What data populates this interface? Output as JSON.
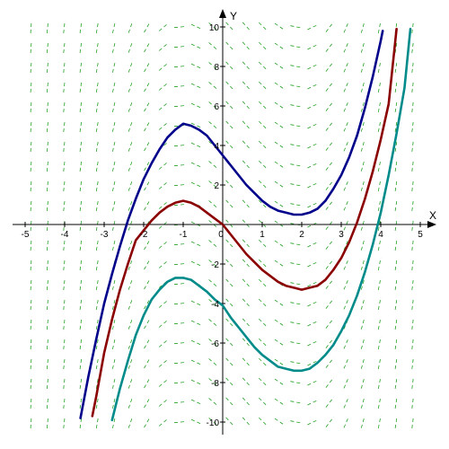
{
  "chart_data": {
    "type": "line",
    "title": "",
    "xlabel": "X",
    "ylabel": "Y",
    "xlim": [
      -5.4,
      5.4
    ],
    "ylim": [
      -10.9,
      10.9
    ],
    "x_ticks": [
      -5,
      -4,
      -3,
      -2,
      -1,
      0,
      1,
      2,
      3,
      4,
      5
    ],
    "y_ticks": [
      -10,
      -8,
      -6,
      -4,
      -2,
      2,
      4,
      6,
      8,
      10
    ],
    "x_tick_labels": [
      "-5",
      "-4",
      "-3",
      "-2",
      "-1",
      "0",
      "1",
      "2",
      "3",
      "4",
      "5"
    ],
    "y_tick_labels": [
      "-10",
      "-8",
      "-6",
      "-4",
      "-2",
      "2",
      "4",
      "6",
      "8",
      "10"
    ],
    "grid": false,
    "slope_field": {
      "dy_dx": "x^2 - x - 2",
      "x_range": [
        -4.9,
        4.7
      ],
      "y_range": [
        -10,
        10
      ],
      "color": "#22a022"
    },
    "series": [
      {
        "color": "#00008b",
        "x": [
          -3.6,
          -3.4,
          -3.2,
          -3.0,
          -2.8,
          -2.6,
          -2.4,
          -2.2,
          -2.0,
          -1.8,
          -1.6,
          -1.4,
          -1.2,
          -1.0,
          -0.8,
          -0.6,
          -0.4,
          -0.2,
          0.0,
          0.2,
          0.4,
          0.6,
          0.8,
          1.0,
          1.2,
          1.4,
          1.6,
          1.8,
          2.0,
          2.2,
          2.4,
          2.6,
          2.8,
          3.0,
          3.2,
          3.4,
          3.6,
          3.8,
          4.0,
          4.05
        ],
        "y": [
          -9.8,
          -7.7,
          -5.8,
          -4.0,
          -2.5,
          -1.1,
          0.2,
          1.3,
          2.3,
          3.1,
          3.8,
          4.4,
          4.8,
          5.1,
          5.0,
          4.8,
          4.5,
          4.0,
          3.5,
          3.0,
          2.5,
          2.0,
          1.6,
          1.2,
          0.9,
          0.7,
          0.6,
          0.5,
          0.5,
          0.6,
          0.8,
          1.2,
          1.8,
          2.5,
          3.4,
          4.5,
          5.9,
          7.5,
          9.3,
          9.8
        ]
      },
      {
        "color": "#8b0000",
        "x": [
          -3.3,
          -3.2,
          -3.0,
          -2.8,
          -2.6,
          -2.4,
          -2.2,
          -2.0,
          -1.8,
          -1.6,
          -1.4,
          -1.2,
          -1.0,
          -0.8,
          -0.6,
          -0.4,
          -0.2,
          0.0,
          0.2,
          0.4,
          0.6,
          0.8,
          1.0,
          1.2,
          1.4,
          1.6,
          1.8,
          2.0,
          2.2,
          2.4,
          2.6,
          2.8,
          3.0,
          3.2,
          3.4,
          3.6,
          3.8,
          4.0,
          4.2,
          4.4
        ],
        "y": [
          -9.7,
          -8.7,
          -6.5,
          -4.8,
          -3.3,
          -2.0,
          -0.8,
          -0.3,
          0.2,
          0.6,
          0.9,
          1.1,
          1.2,
          1.1,
          0.9,
          0.6,
          0.3,
          0.0,
          -0.5,
          -1.0,
          -1.5,
          -1.9,
          -2.3,
          -2.6,
          -2.9,
          -3.1,
          -3.2,
          -3.3,
          -3.2,
          -3.1,
          -2.8,
          -2.3,
          -1.7,
          -0.9,
          0.1,
          1.3,
          2.7,
          4.3,
          6.1,
          9.9
        ]
      },
      {
        "color": "#008b8b",
        "x": [
          -2.8,
          -2.6,
          -2.4,
          -2.2,
          -2.0,
          -1.8,
          -1.6,
          -1.4,
          -1.2,
          -1.0,
          -0.8,
          -0.6,
          -0.4,
          -0.2,
          0.0,
          0.2,
          0.4,
          0.6,
          0.8,
          1.0,
          1.2,
          1.4,
          1.6,
          1.8,
          2.0,
          2.2,
          2.4,
          2.6,
          2.8,
          3.0,
          3.2,
          3.4,
          3.6,
          3.8,
          4.0,
          4.2,
          4.4,
          4.6,
          4.75
        ],
        "y": [
          -9.9,
          -8.3,
          -6.9,
          -5.6,
          -4.6,
          -3.8,
          -3.3,
          -2.9,
          -2.7,
          -2.7,
          -2.8,
          -3.1,
          -3.4,
          -3.8,
          -4.1,
          -4.7,
          -5.2,
          -5.7,
          -6.2,
          -6.6,
          -6.9,
          -7.2,
          -7.3,
          -7.4,
          -7.4,
          -7.3,
          -7.0,
          -6.6,
          -6.1,
          -5.4,
          -4.6,
          -3.6,
          -2.4,
          -1.0,
          0.6,
          2.5,
          4.6,
          6.9,
          9.9
        ]
      }
    ]
  }
}
